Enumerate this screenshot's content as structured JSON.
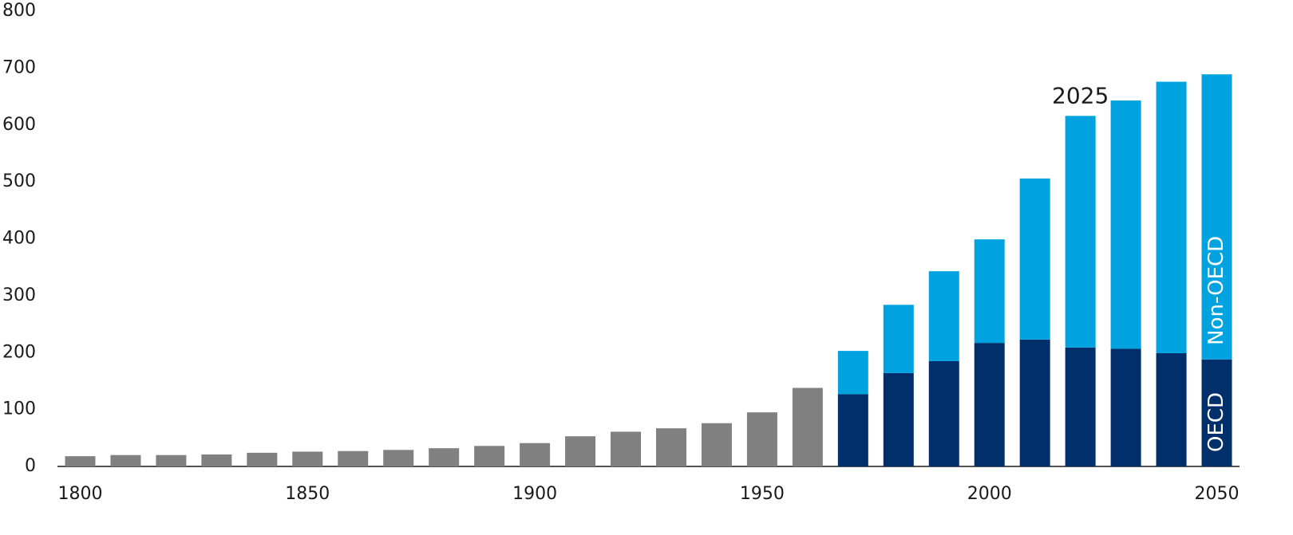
{
  "chart_data": {
    "type": "stacked-bar",
    "annotation": "2025",
    "x": [
      1800,
      1810,
      1820,
      1830,
      1840,
      1850,
      1860,
      1870,
      1880,
      1890,
      1900,
      1910,
      1920,
      1930,
      1940,
      1950,
      1960,
      1970,
      1980,
      1990,
      2000,
      2010,
      2020,
      2030,
      2040,
      2050
    ],
    "series": [
      {
        "color": "#808080",
        "values": [
          18,
          20,
          20,
          21,
          24,
          26,
          27,
          29,
          32,
          36,
          41,
          53,
          61,
          67,
          76,
          95,
          138,
          null,
          null,
          null,
          null,
          null,
          null,
          null,
          null,
          null
        ]
      },
      {
        "name": "OECD",
        "color": "#002f6c",
        "values": [
          null,
          null,
          null,
          null,
          null,
          null,
          null,
          null,
          null,
          null,
          null,
          null,
          null,
          null,
          null,
          null,
          null,
          127,
          164,
          185,
          217,
          223,
          209,
          207,
          199,
          188
        ]
      },
      {
        "name": "Non-OECD",
        "color": "#00a3e0",
        "values": [
          null,
          null,
          null,
          null,
          null,
          null,
          null,
          null,
          null,
          null,
          null,
          null,
          null,
          null,
          null,
          null,
          null,
          76,
          120,
          158,
          182,
          283,
          407,
          436,
          477,
          501
        ]
      }
    ],
    "xlim": [
      1795,
      2055
    ],
    "xticks": [
      1800,
      1850,
      1900,
      1950,
      2000,
      2050
    ],
    "ylim": [
      0,
      800
    ],
    "yticks": [
      0,
      100,
      200,
      300,
      400,
      500,
      600,
      700,
      800
    ],
    "grid": false
  }
}
